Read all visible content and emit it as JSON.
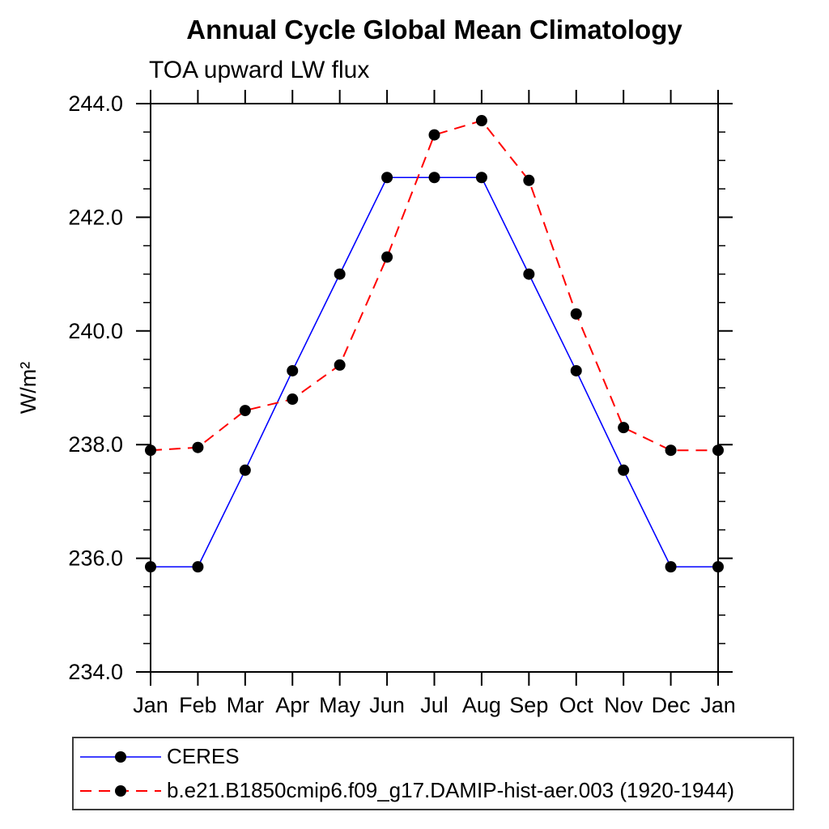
{
  "title": "Annual Cycle Global Mean Climatology",
  "subtitle": "TOA upward LW flux",
  "chart_data": {
    "type": "line",
    "categories": [
      "Jan",
      "Feb",
      "Mar",
      "Apr",
      "May",
      "Jun",
      "Jul",
      "Aug",
      "Sep",
      "Oct",
      "Nov",
      "Dec",
      "Jan"
    ],
    "series": [
      {
        "name": "CERES",
        "color": "#0000ff",
        "line_style": "solid",
        "line_width": 1.6,
        "marker": "dot",
        "values": [
          235.85,
          235.85,
          237.55,
          239.3,
          241.0,
          242.7,
          242.7,
          242.7,
          241.0,
          239.3,
          237.55,
          235.85,
          235.85
        ]
      },
      {
        "name": "b.e21.B1850cmip6.f09_g17.DAMIP-hist-aer.003 (1920-1944)",
        "color": "#ff0000",
        "line_style": "dashed",
        "line_width": 2,
        "marker": "dot",
        "values": [
          237.9,
          237.95,
          238.6,
          238.8,
          239.4,
          241.3,
          243.45,
          243.7,
          242.65,
          240.3,
          238.3,
          237.9,
          237.9
        ]
      }
    ],
    "xlabel": "",
    "ylabel": "W/m²",
    "ylim": [
      234.0,
      244.0
    ],
    "ytick_step": 2.0,
    "yminor_step": 0.5,
    "ytick_labels": [
      "234.0",
      "236.0",
      "238.0",
      "240.0",
      "242.0",
      "244.0"
    ],
    "marker_color": "#000000",
    "axis_color": "#000000",
    "grid": false,
    "legend_position": "bottom-left-box"
  }
}
